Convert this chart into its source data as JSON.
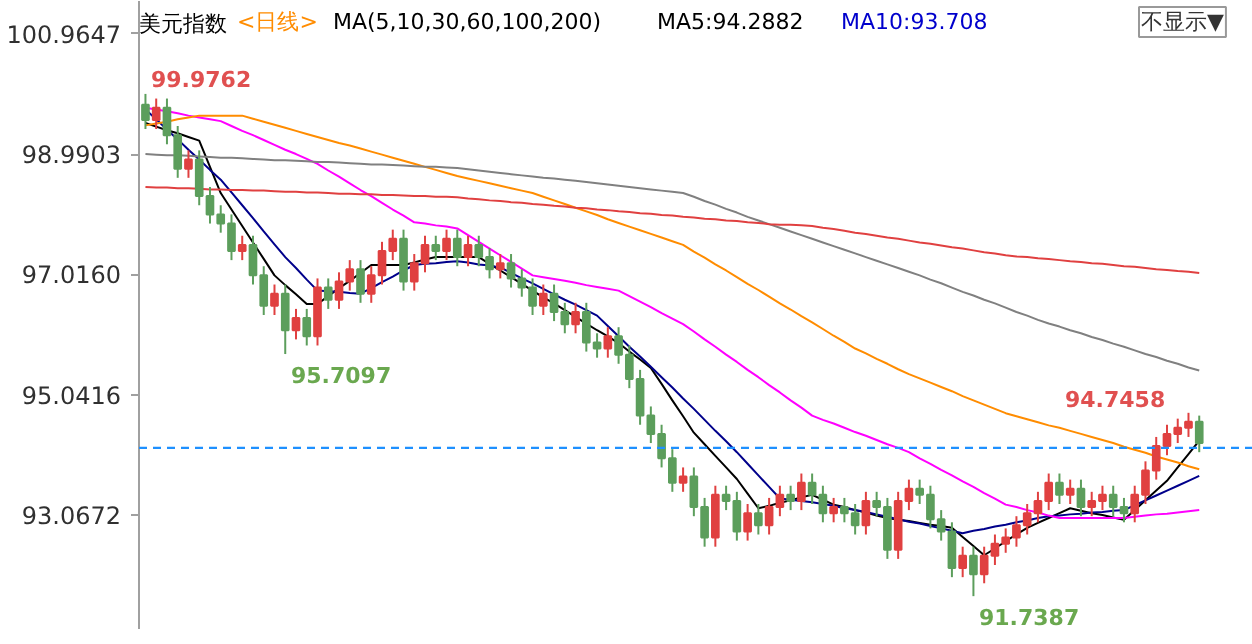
{
  "chart_data": {
    "type": "candlestick",
    "title": "美元指数",
    "annotations": [
      "<日线>",
      "MA(5,10,30,60,100,200)",
      "MA5:94.2882",
      "MA10:93.708",
      "不显示▼",
      "99.9762",
      "95.7097",
      "91.7387",
      "94.7458"
    ],
    "categories": [
      null,
      null,
      null,
      null,
      null,
      null,
      null,
      null,
      null,
      null,
      null,
      null,
      null,
      null,
      null,
      null,
      null,
      null,
      null,
      null,
      null,
      null,
      null,
      null,
      null,
      null,
      null,
      null,
      null,
      null,
      null,
      null,
      null,
      null,
      null,
      null,
      null,
      null,
      null,
      null,
      null,
      null,
      null,
      null,
      null,
      null,
      null,
      null,
      null,
      null,
      null,
      null,
      null,
      null,
      null,
      null,
      null,
      null,
      null,
      null,
      null,
      null,
      null,
      null,
      null,
      null,
      null,
      null,
      null,
      null,
      null,
      null,
      null,
      null,
      null,
      null,
      null,
      null,
      null,
      null,
      null,
      null,
      null,
      null,
      null,
      null,
      null,
      null,
      null,
      null,
      null,
      null,
      null,
      null,
      null,
      null,
      null,
      null,
      null
    ],
    "ohlc": [
      [
        99.8,
        99.9762,
        99.4,
        99.55
      ],
      [
        99.55,
        99.9,
        99.4,
        99.75
      ],
      [
        99.75,
        99.9,
        99.15,
        99.3
      ],
      [
        99.3,
        99.45,
        98.6,
        98.75
      ],
      [
        98.75,
        99.05,
        98.6,
        98.9
      ],
      [
        98.9,
        99.05,
        98.15,
        98.3
      ],
      [
        98.3,
        98.45,
        97.85,
        98.0
      ],
      [
        98.0,
        98.15,
        97.7,
        97.85
      ],
      [
        97.85,
        98.0,
        97.25,
        97.4
      ],
      [
        97.4,
        97.65,
        97.25,
        97.5
      ],
      [
        97.5,
        97.65,
        96.85,
        97.0
      ],
      [
        97.0,
        97.15,
        96.35,
        96.5
      ],
      [
        96.5,
        96.85,
        96.35,
        96.7
      ],
      [
        96.7,
        96.85,
        95.7097,
        96.1
      ],
      [
        96.1,
        96.45,
        95.95,
        96.3
      ],
      [
        96.3,
        96.45,
        95.85,
        96.0
      ],
      [
        96.0,
        96.95,
        95.85,
        96.8
      ],
      [
        96.8,
        96.95,
        96.45,
        96.6
      ],
      [
        96.6,
        97.05,
        96.45,
        96.9
      ],
      [
        96.9,
        97.25,
        96.75,
        97.1
      ],
      [
        97.1,
        97.25,
        96.55,
        96.7
      ],
      [
        96.7,
        97.15,
        96.55,
        97.0
      ],
      [
        97.0,
        97.55,
        96.85,
        97.4
      ],
      [
        97.4,
        97.75,
        97.25,
        97.6
      ],
      [
        97.6,
        97.75,
        96.75,
        96.9
      ],
      [
        96.9,
        97.35,
        96.75,
        97.2
      ],
      [
        97.2,
        97.65,
        97.05,
        97.5
      ],
      [
        97.5,
        97.65,
        97.25,
        97.4
      ],
      [
        97.4,
        97.75,
        97.25,
        97.6
      ],
      [
        97.6,
        97.75,
        97.15,
        97.3
      ],
      [
        97.3,
        97.65,
        97.15,
        97.5
      ],
      [
        97.5,
        97.65,
        97.15,
        97.3
      ],
      [
        97.3,
        97.45,
        96.95,
        97.1
      ],
      [
        97.1,
        97.35,
        96.95,
        97.2
      ],
      [
        97.2,
        97.35,
        96.8,
        96.95
      ],
      [
        96.95,
        97.1,
        96.65,
        96.8
      ],
      [
        96.8,
        96.95,
        96.35,
        96.5
      ],
      [
        96.5,
        96.85,
        96.35,
        96.7
      ],
      [
        96.7,
        96.85,
        96.25,
        96.4
      ],
      [
        96.4,
        96.55,
        96.05,
        96.2
      ],
      [
        96.2,
        96.55,
        96.05,
        96.4
      ],
      [
        96.4,
        96.55,
        95.75,
        95.9
      ],
      [
        95.9,
        96.05,
        95.65,
        95.8
      ],
      [
        95.8,
        96.15,
        95.65,
        96.0
      ],
      [
        96.0,
        96.15,
        95.55,
        95.7
      ],
      [
        95.7,
        95.85,
        95.15,
        95.3
      ],
      [
        95.3,
        95.45,
        94.55,
        94.7
      ],
      [
        94.7,
        94.85,
        94.25,
        94.4
      ],
      [
        94.4,
        94.55,
        93.85,
        94.0
      ],
      [
        94.0,
        94.15,
        93.45,
        93.6
      ],
      [
        93.6,
        93.85,
        93.45,
        93.7
      ],
      [
        93.7,
        93.85,
        93.05,
        93.2
      ],
      [
        93.2,
        93.35,
        92.55,
        92.7
      ],
      [
        92.7,
        93.55,
        92.55,
        93.4
      ],
      [
        93.4,
        93.55,
        93.15,
        93.3
      ],
      [
        93.3,
        93.45,
        92.65,
        92.8
      ],
      [
        92.8,
        93.25,
        92.65,
        93.1
      ],
      [
        93.1,
        93.25,
        92.75,
        92.9
      ],
      [
        92.9,
        93.35,
        92.75,
        93.2
      ],
      [
        93.2,
        93.55,
        93.05,
        93.4
      ],
      [
        93.4,
        93.55,
        93.15,
        93.3
      ],
      [
        93.3,
        93.75,
        93.15,
        93.6
      ],
      [
        93.6,
        93.75,
        93.25,
        93.4
      ],
      [
        93.4,
        93.55,
        92.95,
        93.1
      ],
      [
        93.1,
        93.35,
        92.95,
        93.2
      ],
      [
        93.2,
        93.35,
        92.95,
        93.1
      ],
      [
        93.1,
        93.25,
        92.75,
        92.9
      ],
      [
        92.9,
        93.45,
        92.75,
        93.3
      ],
      [
        93.3,
        93.45,
        93.05,
        93.2
      ],
      [
        93.2,
        93.35,
        92.35,
        92.5
      ],
      [
        92.5,
        93.45,
        92.35,
        93.3
      ],
      [
        93.3,
        93.65,
        93.15,
        93.5
      ],
      [
        93.5,
        93.65,
        93.25,
        93.4
      ],
      [
        93.4,
        93.55,
        92.85,
        93.0
      ],
      [
        93.0,
        93.15,
        92.65,
        92.8
      ],
      [
        92.8,
        92.95,
        92.05,
        92.2
      ],
      [
        92.2,
        92.55,
        92.05,
        92.4
      ],
      [
        92.4,
        92.55,
        91.7387,
        92.1
      ],
      [
        92.1,
        92.55,
        91.95,
        92.4
      ],
      [
        92.4,
        92.75,
        92.25,
        92.6
      ],
      [
        92.6,
        92.85,
        92.45,
        92.7
      ],
      [
        92.7,
        93.05,
        92.55,
        92.9
      ],
      [
        92.9,
        93.25,
        92.75,
        93.1
      ],
      [
        93.1,
        93.45,
        92.95,
        93.3
      ],
      [
        93.3,
        93.75,
        93.15,
        93.6
      ],
      [
        93.6,
        93.75,
        93.25,
        93.4
      ],
      [
        93.4,
        93.65,
        93.25,
        93.5
      ],
      [
        93.5,
        93.65,
        93.05,
        93.2
      ],
      [
        93.2,
        93.45,
        93.05,
        93.3
      ],
      [
        93.3,
        93.55,
        93.15,
        93.4
      ],
      [
        93.4,
        93.55,
        93.05,
        93.2
      ],
      [
        93.2,
        93.35,
        92.95,
        93.1
      ],
      [
        93.1,
        93.55,
        92.95,
        93.4
      ],
      [
        93.4,
        93.95,
        93.25,
        93.8
      ],
      [
        93.8,
        94.35,
        93.65,
        94.2
      ],
      [
        94.2,
        94.55,
        94.05,
        94.4
      ],
      [
        94.4,
        94.65,
        94.25,
        94.5
      ],
      [
        94.5,
        94.7458,
        94.35,
        94.6
      ],
      [
        94.6,
        94.7,
        94.1,
        94.25
      ]
    ],
    "series": [
      {
        "type": "line",
        "color": "#000000",
        "values": [
          99.5,
          99.44,
          99.38,
          99.33,
          99.27,
          99.21,
          98.78,
          98.35,
          98.08,
          97.81,
          97.54,
          97.27,
          97.0,
          96.84,
          96.69,
          96.53,
          96.53,
          96.66,
          96.79,
          96.91,
          97.04,
          97.17,
          97.17,
          97.17,
          97.17,
          97.21,
          97.26,
          97.3,
          97.3,
          97.3,
          97.3,
          97.3,
          97.19,
          97.08,
          96.97,
          96.86,
          96.75,
          96.64,
          96.54,
          96.43,
          96.32,
          96.21,
          96.1,
          96.0,
          95.89,
          95.75,
          95.62,
          95.48,
          95.22,
          94.95,
          94.69,
          94.42,
          94.23,
          94.04,
          93.85,
          93.66,
          93.42,
          93.18,
          93.22,
          93.27,
          93.31,
          93.36,
          93.4,
          93.32,
          93.24,
          93.2,
          93.15,
          93.11,
          93.06,
          93.02,
          92.99,
          92.97,
          92.94,
          92.91,
          92.89,
          92.86,
          92.71,
          92.56,
          92.41,
          92.52,
          92.64,
          92.75,
          92.86,
          92.94,
          93.02,
          93.1,
          93.18,
          93.14,
          93.1,
          93.07,
          93.03,
          92.99,
          93.15,
          93.31,
          93.47,
          93.63,
          93.85,
          94.07,
          94.29
        ]
      },
      {
        "type": "line",
        "color": "#00008b",
        "values": [
          99.72,
          99.56,
          99.39,
          99.23,
          99.06,
          98.9,
          98.73,
          98.57,
          98.36,
          98.15,
          97.94,
          97.72,
          97.51,
          97.3,
          97.12,
          96.93,
          96.75,
          96.74,
          96.73,
          96.71,
          96.7,
          96.79,
          96.89,
          96.98,
          97.08,
          97.17,
          97.19,
          97.2,
          97.22,
          97.23,
          97.21,
          97.18,
          97.16,
          97.13,
          97.04,
          96.95,
          96.87,
          96.78,
          96.69,
          96.6,
          96.52,
          96.43,
          96.34,
          96.17,
          96.0,
          95.83,
          95.67,
          95.5,
          95.33,
          95.16,
          94.98,
          94.81,
          94.63,
          94.45,
          94.28,
          94.1,
          93.91,
          93.72,
          93.53,
          93.34,
          93.32,
          93.3,
          93.28,
          93.25,
          93.22,
          93.18,
          93.15,
          93.12,
          93.08,
          93.04,
          93.0,
          92.96,
          92.93,
          92.89,
          92.85,
          92.81,
          92.77,
          92.81,
          92.84,
          92.88,
          92.91,
          92.95,
          92.98,
          93.02,
          93.05,
          93.06,
          93.08,
          93.09,
          93.11,
          93.12,
          93.14,
          93.15,
          93.23,
          93.31,
          93.39,
          93.47,
          93.55,
          93.63,
          93.71
        ]
      },
      {
        "type": "line",
        "color": "#ff00ff",
        "values": [
          99.75,
          99.72,
          99.69,
          99.66,
          99.62,
          99.59,
          99.56,
          99.53,
          99.45,
          99.37,
          99.3,
          99.22,
          99.14,
          99.06,
          98.99,
          98.91,
          98.83,
          98.72,
          98.62,
          98.51,
          98.4,
          98.3,
          98.19,
          98.08,
          97.98,
          97.87,
          97.85,
          97.82,
          97.8,
          97.77,
          97.66,
          97.55,
          97.44,
          97.33,
          97.22,
          97.11,
          97.0,
          96.97,
          96.94,
          96.91,
          96.88,
          96.84,
          96.81,
          96.78,
          96.75,
          96.66,
          96.57,
          96.48,
          96.38,
          96.29,
          96.2,
          96.08,
          95.95,
          95.83,
          95.7,
          95.58,
          95.45,
          95.33,
          95.2,
          95.08,
          94.95,
          94.83,
          94.7,
          94.63,
          94.57,
          94.5,
          94.43,
          94.37,
          94.3,
          94.23,
          94.17,
          94.1,
          94.0,
          93.91,
          93.81,
          93.72,
          93.62,
          93.53,
          93.43,
          93.34,
          93.24,
          93.2,
          93.15,
          93.11,
          93.06,
          93.02,
          93.02,
          93.02,
          93.02,
          93.02,
          93.02,
          93.02,
          93.04,
          93.06,
          93.08,
          93.09,
          93.11,
          93.13,
          93.15
        ]
      },
      {
        "type": "line",
        "color": "#ff8c00",
        "values": [
          99.46,
          99.49,
          99.52,
          99.56,
          99.59,
          99.62,
          99.62,
          99.62,
          99.62,
          99.62,
          99.57,
          99.52,
          99.47,
          99.42,
          99.37,
          99.32,
          99.27,
          99.22,
          99.17,
          99.13,
          99.08,
          99.03,
          98.98,
          98.93,
          98.88,
          98.83,
          98.78,
          98.73,
          98.68,
          98.63,
          98.59,
          98.55,
          98.51,
          98.47,
          98.43,
          98.39,
          98.35,
          98.29,
          98.23,
          98.17,
          98.11,
          98.05,
          97.99,
          97.92,
          97.86,
          97.8,
          97.74,
          97.68,
          97.62,
          97.56,
          97.5,
          97.39,
          97.29,
          97.18,
          97.08,
          96.97,
          96.86,
          96.76,
          96.65,
          96.54,
          96.44,
          96.33,
          96.23,
          96.12,
          96.01,
          95.91,
          95.8,
          95.72,
          95.63,
          95.55,
          95.46,
          95.38,
          95.31,
          95.24,
          95.17,
          95.1,
          95.02,
          94.95,
          94.88,
          94.81,
          94.74,
          94.69,
          94.64,
          94.59,
          94.54,
          94.5,
          94.45,
          94.4,
          94.35,
          94.3,
          94.25,
          94.19,
          94.14,
          94.09,
          94.03,
          93.98,
          93.93,
          93.87,
          93.82
        ]
      },
      {
        "type": "line",
        "color": "#808080",
        "values": [
          98.99,
          98.98,
          98.97,
          98.97,
          98.96,
          98.95,
          98.94,
          98.93,
          98.93,
          98.92,
          98.91,
          98.9,
          98.89,
          98.89,
          98.88,
          98.87,
          98.86,
          98.86,
          98.85,
          98.84,
          98.83,
          98.82,
          98.82,
          98.81,
          98.8,
          98.79,
          98.78,
          98.78,
          98.77,
          98.76,
          98.74,
          98.72,
          98.7,
          98.68,
          98.66,
          98.64,
          98.62,
          98.6,
          98.59,
          98.57,
          98.55,
          98.53,
          98.51,
          98.49,
          98.47,
          98.45,
          98.43,
          98.41,
          98.39,
          98.37,
          98.35,
          98.29,
          98.22,
          98.16,
          98.09,
          98.03,
          97.96,
          97.9,
          97.84,
          97.78,
          97.72,
          97.66,
          97.6,
          97.54,
          97.48,
          97.42,
          97.36,
          97.3,
          97.24,
          97.18,
          97.12,
          97.06,
          97.0,
          96.93,
          96.87,
          96.8,
          96.73,
          96.67,
          96.6,
          96.54,
          96.47,
          96.4,
          96.34,
          96.27,
          96.21,
          96.16,
          96.1,
          96.05,
          95.99,
          95.94,
          95.88,
          95.83,
          95.77,
          95.71,
          95.66,
          95.6,
          95.55,
          95.49,
          95.44
        ]
      },
      {
        "type": "line",
        "color": "#e04040",
        "values": [
          98.45,
          98.44,
          98.44,
          98.43,
          98.43,
          98.42,
          98.41,
          98.41,
          98.4,
          98.4,
          98.39,
          98.39,
          98.38,
          98.37,
          98.37,
          98.36,
          98.36,
          98.35,
          98.34,
          98.34,
          98.33,
          98.33,
          98.32,
          98.32,
          98.31,
          98.3,
          98.3,
          98.29,
          98.29,
          98.28,
          98.26,
          98.25,
          98.23,
          98.22,
          98.2,
          98.19,
          98.17,
          98.16,
          98.14,
          98.13,
          98.11,
          98.1,
          98.08,
          98.07,
          98.05,
          98.04,
          98.02,
          98.01,
          97.99,
          97.98,
          97.96,
          97.95,
          97.93,
          97.92,
          97.9,
          97.89,
          97.87,
          97.86,
          97.84,
          97.83,
          97.83,
          97.82,
          97.81,
          97.78,
          97.76,
          97.73,
          97.7,
          97.68,
          97.65,
          97.62,
          97.6,
          97.57,
          97.54,
          97.52,
          97.49,
          97.46,
          97.44,
          97.41,
          97.38,
          97.36,
          97.33,
          97.31,
          97.3,
          97.28,
          97.27,
          97.25,
          97.23,
          97.22,
          97.2,
          97.19,
          97.17,
          97.15,
          97.14,
          97.12,
          97.1,
          97.09,
          97.07,
          97.06,
          97.04
        ]
      }
    ],
    "ref_lines": [
      {
        "axis": "y",
        "value": 94.17,
        "color": "#1e90ff",
        "line_style": "dashed"
      }
    ],
    "ylim": [
      91.2,
      101.5
    ],
    "yticks": [
      100.9647,
      98.9903,
      {
        "value": 97.016,
        "label": "97.0160"
      },
      95.0416,
      93.0672
    ],
    "tick_labels": "y",
    "grid": false
  }
}
